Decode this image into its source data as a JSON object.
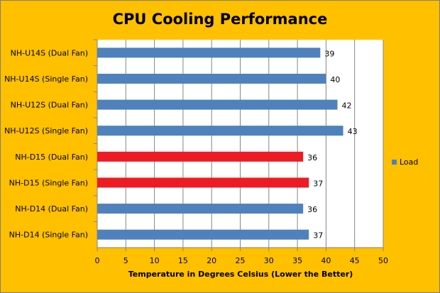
{
  "chart_data": {
    "type": "bar",
    "orientation": "horizontal",
    "title": "CPU Cooling Performance",
    "xlabel": "Temperature in Degrees Celsius (Lower the Better)",
    "ylabel": "",
    "categories": [
      "NH-U14S (Dual Fan)",
      "NH-U14S (Single Fan)",
      "NH-U12S (Dual Fan)",
      "NH-U12S (Single Fan)",
      "NH-D15 (Dual Fan)",
      "NH-D15 (Single Fan)",
      "NH-D14 (Dual Fan)",
      "NH-D14 (Single Fan)"
    ],
    "series": [
      {
        "name": "Load",
        "values": [
          39,
          40,
          42,
          43,
          36,
          37,
          36,
          37
        ],
        "color": "#4F81BD"
      }
    ],
    "highlight_color": "#ED1C24",
    "highlighted": [
      false,
      false,
      false,
      false,
      true,
      true,
      false,
      false
    ],
    "xlim": [
      0,
      50
    ],
    "xticks": [
      0,
      5,
      10,
      15,
      20,
      25,
      30,
      35,
      40,
      45,
      50
    ],
    "grid": true,
    "legend": "right",
    "background": "#FFC000"
  }
}
